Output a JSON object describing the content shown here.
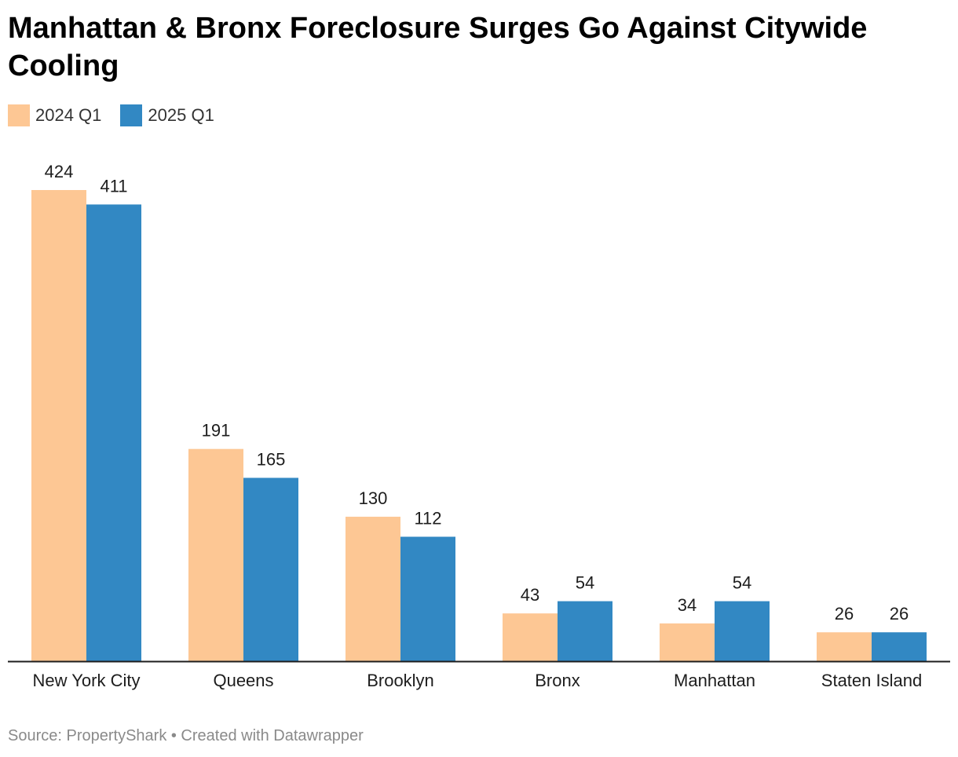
{
  "chart_data": {
    "type": "bar",
    "title": "Manhattan & Bronx Foreclosure Surges Go Against Citywide Cooling",
    "categories": [
      "New York City",
      "Queens",
      "Brooklyn",
      "Bronx",
      "Manhattan",
      "Staten Island"
    ],
    "series": [
      {
        "name": "2024 Q1",
        "color": "#fdc794",
        "values": [
          424,
          191,
          130,
          43,
          34,
          26
        ]
      },
      {
        "name": "2025 Q1",
        "color": "#3288c3",
        "values": [
          411,
          165,
          112,
          54,
          54,
          26
        ]
      }
    ],
    "xlabel": "",
    "ylabel": "",
    "ylim": [
      0,
      424
    ],
    "grid": false,
    "legend": "top-left",
    "source": "Source: PropertyShark • Created with Datawrapper"
  }
}
